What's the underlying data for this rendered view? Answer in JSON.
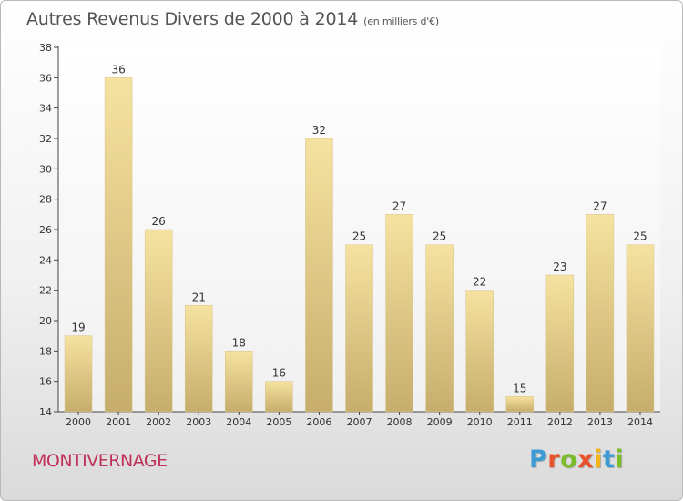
{
  "title": "Autres Revenus Divers de 2000 à 2014",
  "subtitle": "(en milliers d'€)",
  "commune": "MONTIVERNAGE",
  "logo": {
    "letters": [
      "P",
      "r",
      "o",
      "x",
      "i",
      "t",
      "i"
    ],
    "colors": [
      "#3a9bd5",
      "#e8532b",
      "#7cbb2a",
      "#e8532b",
      "#f2b418",
      "#3a9bd5",
      "#7cbb2a"
    ]
  },
  "chart_data": {
    "type": "bar",
    "title": "Autres Revenus Divers de 2000 à 2014",
    "subtitle": "(en milliers d'€)",
    "xlabel": "",
    "ylabel": "",
    "categories": [
      "2000",
      "2001",
      "2002",
      "2003",
      "2004",
      "2005",
      "2006",
      "2007",
      "2008",
      "2009",
      "2010",
      "2011",
      "2012",
      "2013",
      "2014"
    ],
    "values": [
      19,
      36,
      26,
      21,
      18,
      16,
      32,
      25,
      27,
      25,
      22,
      15,
      23,
      27,
      25
    ],
    "ylim": [
      14,
      38
    ],
    "yticks": [
      14,
      16,
      18,
      20,
      22,
      24,
      26,
      28,
      30,
      32,
      34,
      36,
      38
    ],
    "grid": false,
    "bar_color": "#e6cf86"
  }
}
